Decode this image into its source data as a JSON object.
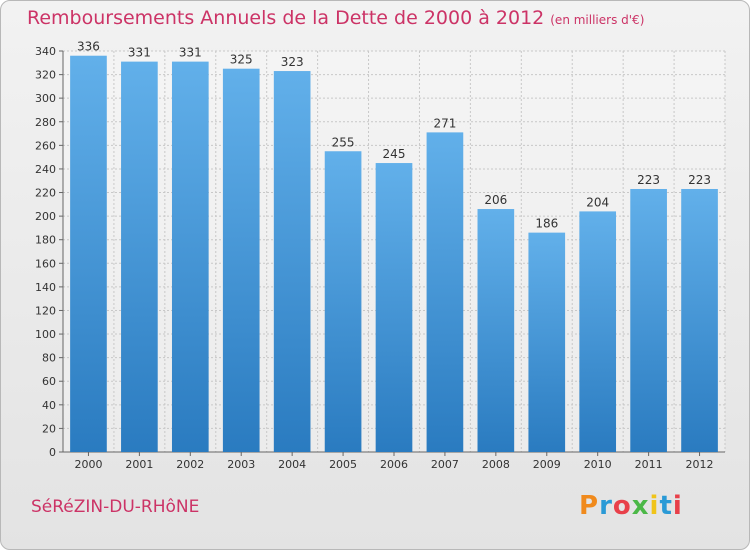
{
  "header": {
    "title": "Remboursements Annuels de la Dette de 2000 à 2012",
    "unit": "(en milliers d'€)"
  },
  "footer": {
    "commune": "SéRéZIN-DU-RHôNE",
    "logo": "Proxiti",
    "logo_colors": [
      "#f08a1c",
      "#2a9ad6",
      "#e8404a",
      "#4bb847",
      "#f0c419",
      "#2a9ad6",
      "#e8404a"
    ]
  },
  "colors": {
    "accent": "#cc3366",
    "bar_top": "#62b0ea",
    "bar_bottom": "#2a7bc0",
    "grid": "#c8c8c8"
  },
  "chart_data": {
    "type": "bar",
    "categories": [
      "2000",
      "2001",
      "2002",
      "2003",
      "2004",
      "2005",
      "2006",
      "2007",
      "2008",
      "2009",
      "2010",
      "2011",
      "2012"
    ],
    "values": [
      336,
      331,
      331,
      325,
      323,
      255,
      245,
      271,
      206,
      186,
      204,
      223,
      223
    ],
    "title": "Remboursements Annuels de la Dette de 2000 à 2012",
    "subtitle": "(en milliers d'€)",
    "xlabel": "",
    "ylabel": "",
    "ylim": [
      0,
      340
    ],
    "yticks": [
      0,
      20,
      40,
      60,
      80,
      100,
      120,
      140,
      160,
      180,
      200,
      220,
      240,
      260,
      280,
      300,
      320,
      340
    ],
    "grid": true,
    "legend": "none",
    "data_labels": true
  }
}
